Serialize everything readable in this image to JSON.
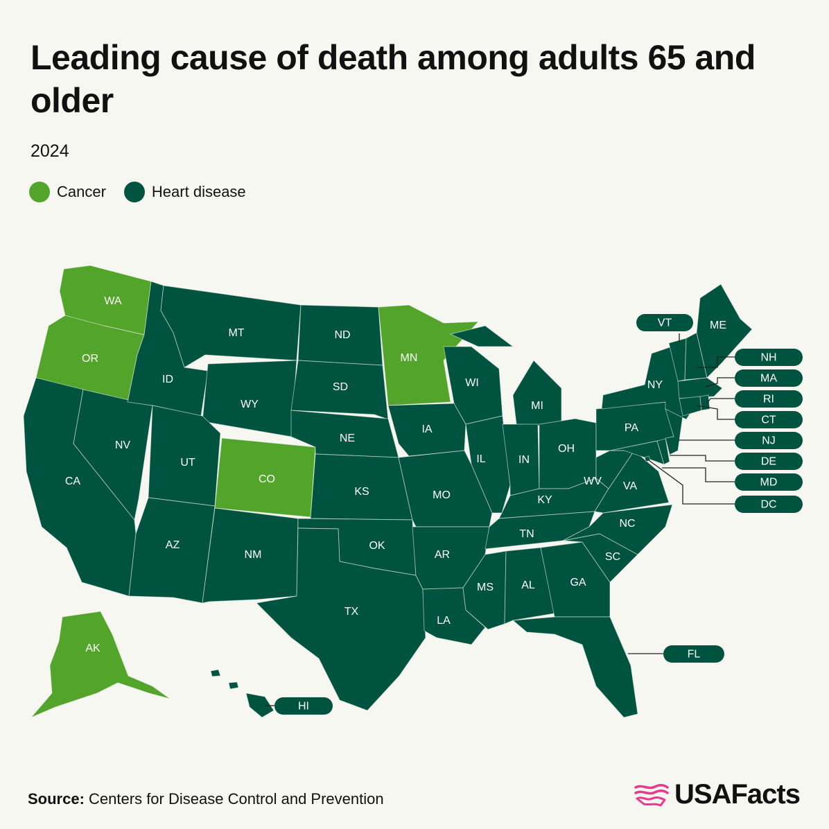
{
  "title": "Leading cause of death among adults 65 and older",
  "subtitle": "2024",
  "legend": [
    {
      "label": "Cancer",
      "color": "#52a52a"
    },
    {
      "label": "Heart disease",
      "color": "#00533f"
    }
  ],
  "source": {
    "prefix": "Source:",
    "text": "Centers for Disease Control and Prevention"
  },
  "logo": {
    "text": "USAFacts",
    "icon": "usafacts-flag-icon",
    "icon_color": "#e8398a"
  },
  "states": {
    "WA": "Cancer",
    "OR": "Cancer",
    "CA": "Heart disease",
    "NV": "Heart disease",
    "ID": "Heart disease",
    "MT": "Heart disease",
    "WY": "Heart disease",
    "UT": "Heart disease",
    "AZ": "Heart disease",
    "CO": "Cancer",
    "NM": "Heart disease",
    "ND": "Heart disease",
    "SD": "Heart disease",
    "NE": "Heart disease",
    "KS": "Heart disease",
    "OK": "Heart disease",
    "TX": "Heart disease",
    "MN": "Cancer",
    "IA": "Heart disease",
    "MO": "Heart disease",
    "AR": "Heart disease",
    "LA": "Heart disease",
    "WI": "Heart disease",
    "IL": "Heart disease",
    "MI": "Heart disease",
    "IN": "Heart disease",
    "OH": "Heart disease",
    "KY": "Heart disease",
    "TN": "Heart disease",
    "MS": "Heart disease",
    "AL": "Heart disease",
    "GA": "Heart disease",
    "FL": "Heart disease",
    "SC": "Heart disease",
    "NC": "Heart disease",
    "VA": "Heart disease",
    "WV": "Heart disease",
    "PA": "Heart disease",
    "NY": "Heart disease",
    "ME": "Heart disease",
    "VT": "Heart disease",
    "NH": "Heart disease",
    "MA": "Heart disease",
    "RI": "Heart disease",
    "CT": "Heart disease",
    "NJ": "Heart disease",
    "DE": "Heart disease",
    "MD": "Heart disease",
    "DC": "Heart disease",
    "AK": "Cancer",
    "HI": "Heart disease"
  }
}
